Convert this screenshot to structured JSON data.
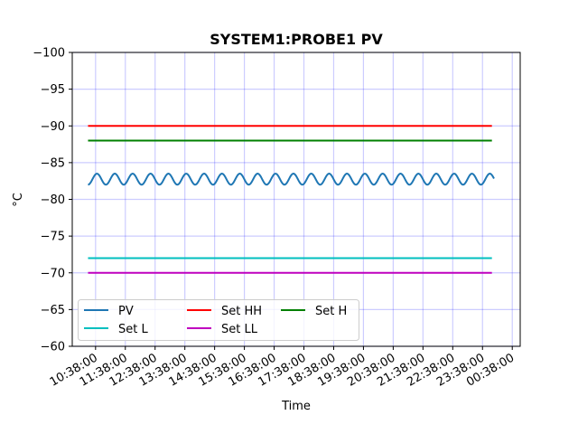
{
  "chart_data": {
    "type": "line",
    "title": "SYSTEM1:PROBE1 PV",
    "xlabel": "Time",
    "ylabel": "°C",
    "x_tick_labels": [
      "10:38:00",
      "11:38:00",
      "12:38:00",
      "13:38:00",
      "14:38:00",
      "15:38:00",
      "16:38:00",
      "17:38:00",
      "18:38:00",
      "19:38:00",
      "20:38:00",
      "21:38:00",
      "22:38:00",
      "23:38:00",
      "00:38:00"
    ],
    "x_range_hours": [
      9.85,
      24.9
    ],
    "ylim": [
      -60,
      -100
    ],
    "y_ticks": [
      -100,
      -95,
      -90,
      -85,
      -80,
      -75,
      -70,
      -65,
      -60
    ],
    "y_tick_labels": [
      "−100",
      "−95",
      "−90",
      "−85",
      "−80",
      "−75",
      "−70",
      "−65",
      "−60"
    ],
    "y_inverted": true,
    "grid": true,
    "grid_color": "#0000ff",
    "legend_position": "lower-left",
    "series": [
      {
        "name": "PV",
        "color": "#1f77b4",
        "kind": "oscillating",
        "center": -82.75,
        "amplitude": 0.75,
        "period_hours": 0.6,
        "x_start": 10.38,
        "x_end": 24.02
      },
      {
        "name": "Set HH",
        "color": "#ff0000",
        "kind": "constant",
        "value": -90,
        "x_start": 10.38,
        "x_end": 23.95
      },
      {
        "name": "Set H",
        "color": "#008000",
        "kind": "constant",
        "value": -88,
        "x_start": 10.38,
        "x_end": 23.95
      },
      {
        "name": "Set L",
        "color": "#00bfbf",
        "kind": "constant",
        "value": -72,
        "x_start": 10.38,
        "x_end": 23.95
      },
      {
        "name": "Set LL",
        "color": "#bf00bf",
        "kind": "constant",
        "value": -70,
        "x_start": 10.38,
        "x_end": 23.95
      }
    ]
  }
}
